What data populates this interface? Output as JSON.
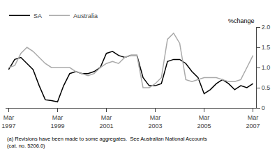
{
  "chart_data": {
    "type": "line",
    "y_label": "%change",
    "annotations": [
      "(a) Revisions have been made to some aggregates.  See Australian National Accounts\n(cat. no. 5206.0)"
    ],
    "categories": [
      "Mar\n1997",
      null,
      null,
      null,
      null,
      null,
      null,
      null,
      "Mar\n1999",
      null,
      null,
      null,
      null,
      null,
      null,
      null,
      "Mar\n2001",
      null,
      null,
      null,
      null,
      null,
      null,
      null,
      "Mar\n2003",
      null,
      null,
      null,
      null,
      null,
      null,
      null,
      "Mar\n2005",
      null,
      null,
      null,
      null,
      null,
      null,
      null,
      "Mar\n2007"
    ],
    "series": [
      {
        "name": "SA",
        "color": "#000000",
        "values": [
          0.95,
          1.2,
          1.25,
          1.1,
          0.95,
          0.55,
          0.2,
          0.18,
          0.15,
          0.55,
          0.85,
          0.9,
          0.85,
          0.85,
          0.9,
          1.0,
          1.35,
          1.4,
          1.3,
          1.25,
          1.3,
          1.3,
          0.75,
          0.55,
          0.55,
          0.6,
          1.15,
          1.2,
          1.2,
          1.1,
          0.9,
          0.75,
          0.35,
          0.45,
          0.6,
          0.7,
          0.6,
          0.45,
          0.55,
          0.5,
          0.6
        ]
      },
      {
        "name": "Australia",
        "color": "#aaaaaa",
        "values": [
          1.0,
          1.05,
          1.35,
          1.5,
          1.4,
          1.25,
          1.1,
          1.0,
          1.0,
          1.0,
          1.0,
          0.9,
          0.85,
          0.8,
          0.85,
          1.0,
          1.1,
          1.15,
          1.1,
          1.25,
          1.3,
          1.3,
          0.5,
          0.5,
          0.6,
          0.75,
          1.7,
          1.85,
          1.6,
          0.7,
          0.65,
          0.7,
          0.75,
          0.75,
          0.75,
          0.7,
          0.65,
          0.65,
          0.7,
          1.0,
          1.3
        ]
      }
    ],
    "ylim": [
      0,
      2.0
    ],
    "yticks": [
      0,
      0.5,
      {
        "value": 1.0,
        "label": "1.0"
      },
      1.5,
      {
        "value": 2.0,
        "label": "2.0"
      }
    ],
    "grid": false,
    "legend": "upper left"
  }
}
